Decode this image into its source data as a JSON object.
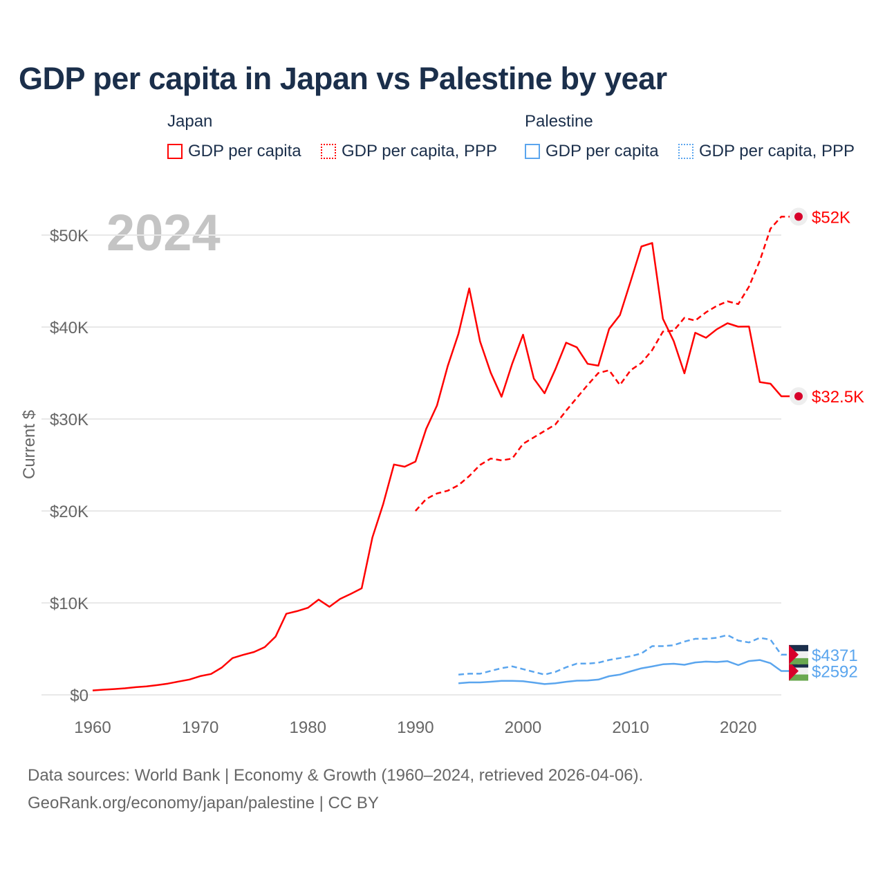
{
  "title": "GDP per capita in Japan vs Palestine by year",
  "legend": {
    "groups": [
      {
        "name": "Japan",
        "items": [
          "GDP per capita",
          "GDP per capita, PPP"
        ],
        "color": "#ff0000"
      },
      {
        "name": "Palestine",
        "items": [
          "GDP per capita",
          "GDP per capita, PPP"
        ],
        "color": "#5aa5ee"
      }
    ]
  },
  "year_watermark": "2024",
  "footer": {
    "line1": "Data sources: World Bank | Economy & Growth (1960–2024, retrieved 2026-04-06).",
    "line2": "GeoRank.org/economy/japan/palestine | CC BY"
  },
  "chart_data": {
    "type": "line",
    "title": "GDP per capita in Japan vs Palestine by year",
    "xlabel": "",
    "ylabel": "Current $",
    "xlim": [
      1960,
      2024
    ],
    "ylim": [
      0,
      52000
    ],
    "x_ticks": [
      1960,
      1970,
      1980,
      1990,
      2000,
      2010,
      2020
    ],
    "y_ticks": [
      {
        "v": 0,
        "label": "$0"
      },
      {
        "v": 10000,
        "label": "$10K"
      },
      {
        "v": 20000,
        "label": "$20K"
      },
      {
        "v": 30000,
        "label": "$30K"
      },
      {
        "v": 40000,
        "label": "$40K"
      },
      {
        "v": 50000,
        "label": "$50K"
      }
    ],
    "grid": true,
    "legend_position": "top",
    "series": [
      {
        "name": "Japan GDP per capita",
        "color": "#ff0000",
        "dash": false,
        "end_label": "$32.5K",
        "start": 1960,
        "values": [
          479,
          564,
          634,
          718,
          836,
          919,
          1058,
          1229,
          1451,
          1669,
          2037,
          2272,
          2967,
          3997,
          4354,
          4659,
          5197,
          6335,
          8821,
          9105,
          9463,
          10361,
          9578,
          10425,
          10984,
          11584,
          17112,
          20745,
          25052,
          24813,
          25371,
          28925,
          31465,
          35766,
          39269,
          44200,
          38437,
          35022,
          32423,
          36027,
          39173,
          34400,
          32800,
          35400,
          38300,
          37800,
          36000,
          35800,
          39800,
          41300,
          44968,
          48760,
          49145,
          40898,
          38475,
          34961,
          39375,
          38834,
          39751,
          40416,
          40040,
          40058,
          34017,
          33834,
          32476
        ]
      },
      {
        "name": "Japan GDP per capita, PPP",
        "color": "#ff0000",
        "dash": true,
        "end_label": "$52K",
        "start": 1990,
        "values": [
          20000,
          21300,
          21900,
          22200,
          22800,
          23800,
          25000,
          25700,
          25500,
          25700,
          27300,
          28000,
          28700,
          29400,
          30900,
          32300,
          33700,
          35000,
          35300,
          33700,
          35300,
          36100,
          37500,
          39500,
          39600,
          41000,
          40700,
          41600,
          42300,
          42800,
          42500,
          44400,
          47200,
          50700,
          52000
        ]
      },
      {
        "name": "Palestine GDP per capita",
        "color": "#5aa5ee",
        "dash": false,
        "end_label": "$2592",
        "start": 1994,
        "values": [
          1260,
          1350,
          1350,
          1430,
          1520,
          1530,
          1480,
          1330,
          1170,
          1260,
          1420,
          1540,
          1560,
          1660,
          2030,
          2200,
          2560,
          2890,
          3090,
          3320,
          3380,
          3270,
          3530,
          3620,
          3570,
          3660,
          3230,
          3680,
          3790,
          3440,
          2592
        ]
      },
      {
        "name": "Palestine GDP per capita, PPP",
        "color": "#5aa5ee",
        "dash": true,
        "end_label": "$4371",
        "start": 1994,
        "values": [
          2200,
          2300,
          2300,
          2600,
          2900,
          3100,
          2800,
          2500,
          2200,
          2500,
          3000,
          3400,
          3400,
          3500,
          3800,
          4000,
          4200,
          4500,
          5300,
          5300,
          5400,
          5800,
          6100,
          6100,
          6200,
          6500,
          5900,
          5700,
          6200,
          6000,
          4371
        ]
      }
    ]
  }
}
